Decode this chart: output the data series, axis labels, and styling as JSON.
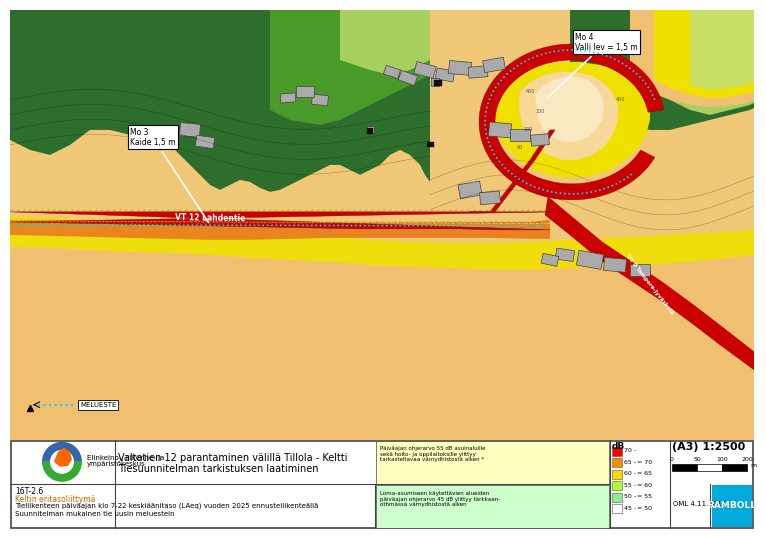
{
  "title_line1": "Valtatien 12 parantaminen välillä Tillola - Keltti",
  "title_line2": "Tiesuunnitelman tarkistuksen laatiminen",
  "subtitle1": "16T-2.6",
  "subtitle2": "Keltin eritasoliittymä",
  "subtitle3": "Tieliikenteen päiväajan klo 7-22 keskiäänitaso (LAeq) vuoden 2025 ennusteliikenteällä",
  "subtitle4": "Suunnitelman mukainen tie uusin meluestein",
  "scale_text": "(A3) 1:2500",
  "date_text": "OML 4.11.2014",
  "noise_colors_6": [
    "#FF0000",
    "#FF8C00",
    "#FFD700",
    "#ADFF2F",
    "#90EE90",
    "#FFFFFF"
  ],
  "noise_labels_6": [
    "70 -",
    "65 - 70",
    "60 - 65",
    "55 - 60",
    "50 - 55",
    "45 - 50"
  ],
  "dB_values": [
    70,
    65,
    60,
    55,
    50,
    45
  ],
  "map_bg": "#C8E0A0",
  "dark_green": "#2D6E2D",
  "med_green": "#4A9A2A",
  "light_green": "#90C830",
  "pale_green": "#B8D870",
  "orange_noise": "#E88020",
  "yellow_noise": "#F0E000",
  "light_orange": "#F0B060",
  "pale_orange": "#F8D898",
  "road_red": "#CC0000",
  "road_dark": "#880000",
  "barrier_blue": "#4488FF",
  "barrier_cyan": "#00DDFF",
  "border_color": "#444444",
  "ramboll_bg": "#00AADD"
}
